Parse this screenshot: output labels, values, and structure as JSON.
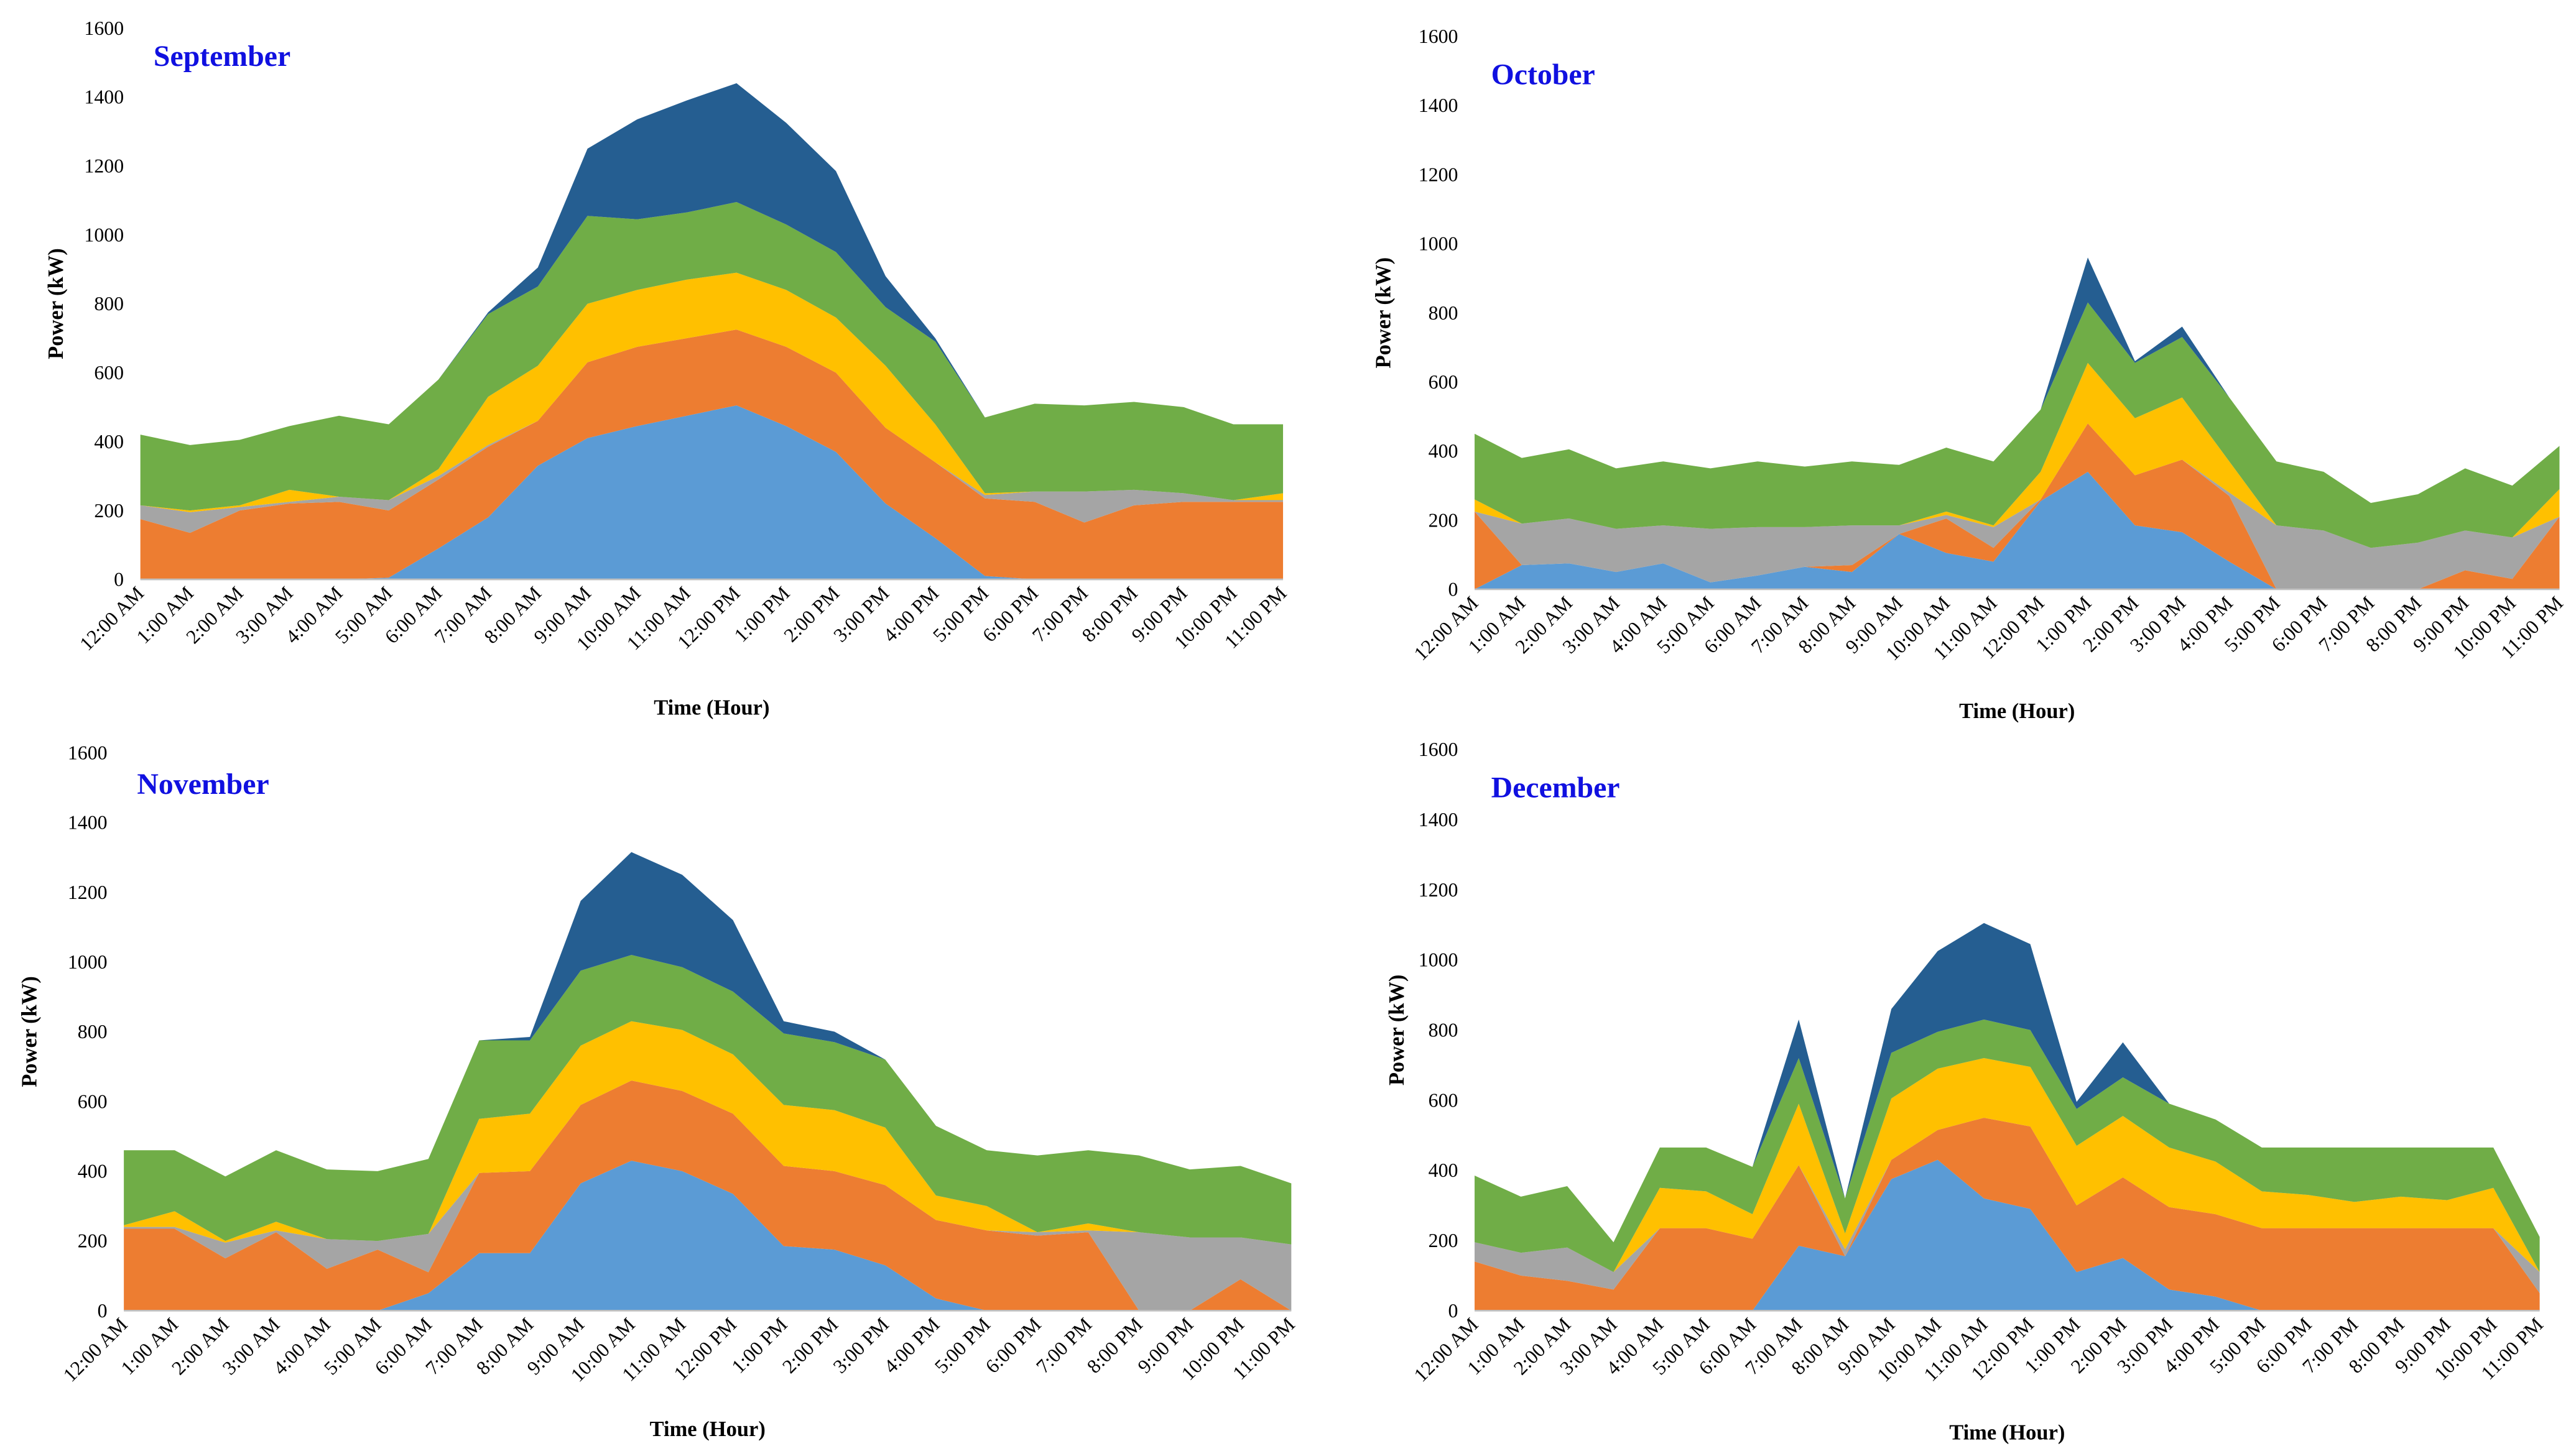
{
  "chart_data": [
    {
      "type": "stacked_area",
      "title": "September",
      "ylabel": "Power (kW)",
      "xlabel": "Time (Hour)",
      "categories": [
        "12:00 AM",
        "1:00 AM",
        "2:00 AM",
        "3:00 AM",
        "4:00 AM",
        "5:00 AM",
        "6:00 AM",
        "7:00 AM",
        "8:00 AM",
        "9:00 AM",
        "10:00 AM",
        "11:00 AM",
        "12:00 PM",
        "1:00 PM",
        "2:00 PM",
        "3:00 PM",
        "4:00 PM",
        "5:00 PM",
        "6:00 PM",
        "7:00 PM",
        "8:00 PM",
        "9:00 PM",
        "10:00 PM",
        "11:00 PM"
      ],
      "ylim": [
        0,
        1600
      ],
      "yticks": [
        0,
        200,
        400,
        600,
        800,
        1000,
        1200,
        1400,
        1600
      ],
      "series": [
        {
          "color": "#5b9bd5",
          "values": [
            0,
            0,
            0,
            0,
            0,
            5,
            90,
            180,
            330,
            410,
            445,
            475,
            505,
            445,
            370,
            220,
            120,
            10,
            0,
            0,
            0,
            0,
            0,
            0
          ]
        },
        {
          "color": "#ed7d31",
          "values": [
            175,
            135,
            200,
            220,
            225,
            195,
            200,
            205,
            130,
            220,
            230,
            225,
            220,
            230,
            230,
            220,
            220,
            225,
            225,
            165,
            215,
            225,
            225,
            225
          ]
        },
        {
          "color": "#a5a5a5",
          "values": [
            40,
            60,
            10,
            5,
            15,
            30,
            10,
            5,
            0,
            0,
            0,
            0,
            0,
            0,
            0,
            0,
            0,
            10,
            30,
            90,
            45,
            25,
            5,
            5
          ]
        },
        {
          "color": "#ffc000",
          "values": [
            0,
            5,
            5,
            35,
            0,
            0,
            20,
            140,
            160,
            170,
            165,
            170,
            165,
            165,
            160,
            180,
            110,
            5,
            0,
            0,
            0,
            0,
            0,
            20
          ]
        },
        {
          "color": "#70ad47",
          "values": [
            205,
            190,
            190,
            185,
            235,
            220,
            260,
            240,
            230,
            255,
            205,
            195,
            205,
            190,
            190,
            170,
            240,
            220,
            255,
            250,
            255,
            250,
            220,
            200
          ]
        },
        {
          "color": "#255e91",
          "values": [
            0,
            0,
            0,
            0,
            0,
            0,
            0,
            5,
            55,
            195,
            290,
            325,
            345,
            295,
            235,
            90,
            10,
            0,
            0,
            0,
            0,
            0,
            0,
            0
          ]
        }
      ]
    },
    {
      "type": "stacked_area",
      "title": "October",
      "ylabel": "Power (kW)",
      "xlabel": "Time (Hour)",
      "categories": [
        "12:00 AM",
        "1:00 AM",
        "2:00 AM",
        "3:00 AM",
        "4:00 AM",
        "5:00 AM",
        "6:00 AM",
        "7:00 AM",
        "8:00 AM",
        "9:00 AM",
        "10:00 AM",
        "11:00 AM",
        "12:00 PM",
        "1:00 PM",
        "2:00 PM",
        "3:00 PM",
        "4:00 PM",
        "5:00 PM",
        "6:00 PM",
        "7:00 PM",
        "8:00 PM",
        "9:00 PM",
        "10:00 PM",
        "11:00 PM"
      ],
      "ylim": [
        0,
        1600
      ],
      "yticks": [
        0,
        200,
        400,
        600,
        800,
        1000,
        1200,
        1400,
        1600
      ],
      "series": [
        {
          "color": "#5b9bd5",
          "values": [
            0,
            70,
            75,
            50,
            75,
            20,
            40,
            65,
            50,
            160,
            105,
            80,
            255,
            340,
            185,
            165,
            80,
            0,
            0,
            0,
            0,
            0,
            0,
            0
          ]
        },
        {
          "color": "#ed7d31",
          "values": [
            225,
            0,
            0,
            0,
            0,
            0,
            0,
            0,
            20,
            0,
            100,
            40,
            5,
            140,
            145,
            210,
            190,
            0,
            0,
            0,
            0,
            55,
            30,
            210
          ]
        },
        {
          "color": "#a5a5a5",
          "values": [
            0,
            120,
            130,
            125,
            110,
            155,
            140,
            115,
            115,
            25,
            10,
            60,
            0,
            0,
            0,
            0,
            10,
            185,
            170,
            120,
            135,
            115,
            120,
            0
          ]
        },
        {
          "color": "#ffc000",
          "values": [
            35,
            0,
            0,
            0,
            0,
            0,
            0,
            0,
            0,
            0,
            10,
            5,
            80,
            175,
            165,
            180,
            90,
            0,
            0,
            0,
            0,
            0,
            0,
            80
          ]
        },
        {
          "color": "#70ad47",
          "values": [
            190,
            190,
            200,
            175,
            185,
            175,
            190,
            175,
            185,
            175,
            185,
            185,
            180,
            175,
            160,
            175,
            185,
            185,
            170,
            130,
            140,
            180,
            150,
            125
          ]
        },
        {
          "color": "#255e91",
          "values": [
            0,
            0,
            0,
            0,
            0,
            0,
            0,
            0,
            0,
            0,
            0,
            0,
            0,
            130,
            5,
            30,
            0,
            0,
            0,
            0,
            0,
            0,
            0,
            0
          ]
        }
      ]
    },
    {
      "type": "stacked_area",
      "title": "November",
      "ylabel": "Power (kW)",
      "xlabel": "Time (Hour)",
      "categories": [
        "12:00 AM",
        "1:00 AM",
        "2:00 AM",
        "3:00 AM",
        "4:00 AM",
        "5:00 AM",
        "6:00 AM",
        "7:00 AM",
        "8:00 AM",
        "9:00 AM",
        "10:00 AM",
        "11:00 AM",
        "12:00 PM",
        "1:00 PM",
        "2:00 PM",
        "3:00 PM",
        "4:00 PM",
        "5:00 PM",
        "6:00 PM",
        "7:00 PM",
        "8:00 PM",
        "9:00 PM",
        "10:00 PM",
        "11:00 PM"
      ],
      "ylim": [
        0,
        1600
      ],
      "yticks": [
        0,
        200,
        400,
        600,
        800,
        1000,
        1200,
        1400,
        1600
      ],
      "series": [
        {
          "color": "#5b9bd5",
          "values": [
            0,
            0,
            0,
            0,
            0,
            0,
            50,
            165,
            165,
            365,
            430,
            400,
            335,
            185,
            175,
            130,
            35,
            0,
            0,
            0,
            0,
            0,
            0,
            0
          ]
        },
        {
          "color": "#ed7d31",
          "values": [
            235,
            235,
            150,
            225,
            120,
            175,
            60,
            230,
            235,
            225,
            230,
            230,
            230,
            230,
            225,
            230,
            225,
            230,
            215,
            225,
            0,
            0,
            90,
            0
          ]
        },
        {
          "color": "#a5a5a5",
          "values": [
            5,
            5,
            45,
            5,
            85,
            25,
            110,
            0,
            0,
            0,
            0,
            0,
            0,
            0,
            0,
            0,
            0,
            0,
            10,
            5,
            225,
            210,
            120,
            190
          ]
        },
        {
          "color": "#ffc000",
          "values": [
            5,
            45,
            5,
            25,
            0,
            0,
            0,
            155,
            165,
            170,
            170,
            175,
            170,
            175,
            175,
            165,
            70,
            70,
            0,
            20,
            0,
            0,
            0,
            0
          ]
        },
        {
          "color": "#70ad47",
          "values": [
            215,
            175,
            185,
            205,
            200,
            200,
            215,
            225,
            210,
            215,
            190,
            180,
            180,
            205,
            195,
            195,
            200,
            160,
            220,
            210,
            220,
            195,
            205,
            175
          ]
        },
        {
          "color": "#255e91",
          "values": [
            0,
            0,
            0,
            0,
            0,
            0,
            0,
            0,
            10,
            200,
            295,
            265,
            205,
            35,
            30,
            0,
            0,
            0,
            0,
            0,
            0,
            0,
            0,
            0
          ]
        }
      ]
    },
    {
      "type": "stacked_area",
      "title": "December",
      "ylabel": "Power (kW)",
      "xlabel": "Time (Hour)",
      "categories": [
        "12:00 AM",
        "1:00 AM",
        "2:00 AM",
        "3:00 AM",
        "4:00 AM",
        "5:00 AM",
        "6:00 AM",
        "7:00 AM",
        "8:00 AM",
        "9:00 AM",
        "10:00 AM",
        "11:00 AM",
        "12:00 PM",
        "1:00 PM",
        "2:00 PM",
        "3:00 PM",
        "4:00 PM",
        "5:00 PM",
        "6:00 PM",
        "7:00 PM",
        "8:00 PM",
        "9:00 PM",
        "10:00 PM",
        "11:00 PM"
      ],
      "ylim": [
        0,
        1600
      ],
      "yticks": [
        0,
        200,
        400,
        600,
        800,
        1000,
        1200,
        1400,
        1600
      ],
      "series": [
        {
          "color": "#5b9bd5",
          "values": [
            0,
            0,
            0,
            0,
            0,
            0,
            0,
            185,
            155,
            375,
            430,
            320,
            290,
            110,
            150,
            60,
            40,
            0,
            0,
            0,
            0,
            0,
            0,
            0
          ]
        },
        {
          "color": "#ed7d31",
          "values": [
            140,
            100,
            85,
            60,
            235,
            235,
            205,
            230,
            0,
            55,
            85,
            230,
            235,
            190,
            230,
            235,
            235,
            235,
            235,
            235,
            235,
            235,
            235,
            50
          ]
        },
        {
          "color": "#a5a5a5",
          "values": [
            55,
            65,
            95,
            50,
            0,
            0,
            0,
            0,
            20,
            0,
            0,
            0,
            0,
            0,
            0,
            0,
            0,
            0,
            0,
            0,
            0,
            0,
            0,
            60
          ]
        },
        {
          "color": "#ffc000",
          "values": [
            0,
            0,
            0,
            0,
            115,
            105,
            70,
            175,
            45,
            175,
            175,
            170,
            170,
            170,
            175,
            170,
            150,
            105,
            95,
            75,
            90,
            80,
            115,
            0
          ]
        },
        {
          "color": "#70ad47",
          "values": [
            190,
            160,
            175,
            85,
            115,
            125,
            135,
            130,
            100,
            130,
            105,
            110,
            105,
            105,
            110,
            125,
            120,
            125,
            135,
            155,
            140,
            150,
            115,
            100
          ]
        },
        {
          "color": "#255e91",
          "values": [
            0,
            0,
            0,
            0,
            0,
            0,
            0,
            110,
            0,
            125,
            230,
            275,
            245,
            20,
            100,
            0,
            0,
            0,
            0,
            0,
            0,
            0,
            0,
            0
          ]
        }
      ]
    }
  ]
}
